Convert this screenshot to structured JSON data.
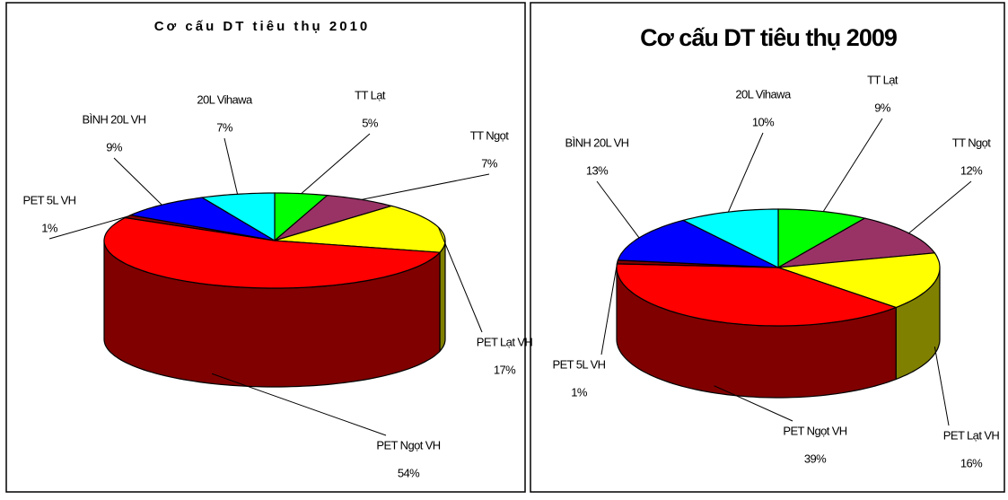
{
  "chart_data": [
    {
      "type": "pie",
      "title": "Cơ cấu DT tiêu thụ 2010",
      "categories": [
        "TT Lạt",
        "TT Ngọt",
        "PET Lạt VH",
        "PET Ngọt VH",
        "PET 5L VH",
        "BÌNH 20L VH",
        "20L Vihawa"
      ],
      "values": [
        5,
        7,
        17,
        54,
        1,
        9,
        7
      ],
      "value_labels": [
        "5%",
        "7%",
        "17%",
        "54%",
        "1%",
        "9%",
        "7%"
      ],
      "colors": [
        "#00ff00",
        "#993366",
        "#ffff00",
        "#ff0000",
        "#800000",
        "#0000ff",
        "#00ffff"
      ]
    },
    {
      "type": "pie",
      "title": "Cơ cấu DT tiêu thụ 2009",
      "categories": [
        "TT Lạt",
        "TT Ngọt",
        "PET Lạt VH",
        "PET Ngọt VH",
        "PET 5L VH",
        "BÌNH 20L VH",
        "20L Vihawa"
      ],
      "values": [
        9,
        12,
        16,
        39,
        1,
        13,
        10
      ],
      "value_labels": [
        "9%",
        "12%",
        "16%",
        "39%",
        "1%",
        "13%",
        "10%"
      ],
      "colors": [
        "#00ff00",
        "#993366",
        "#ffff00",
        "#ff0000",
        "#800000",
        "#0000ff",
        "#00ffff"
      ]
    }
  ]
}
